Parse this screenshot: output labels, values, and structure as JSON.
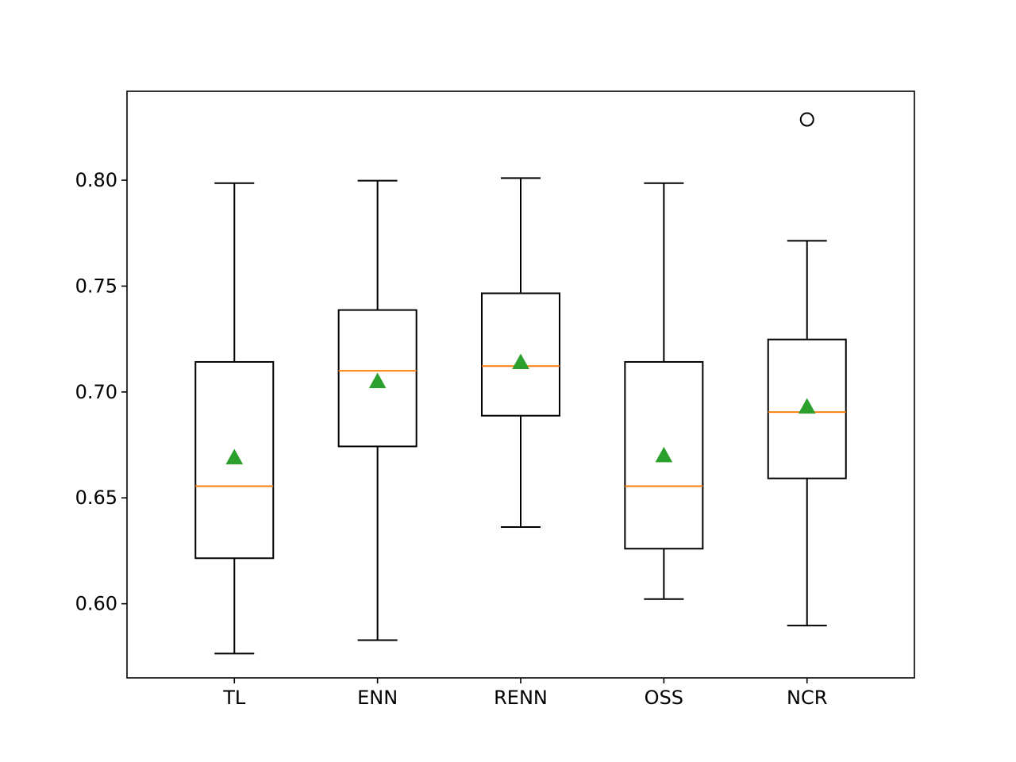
{
  "chart_data": {
    "type": "box",
    "title": "",
    "xlabel": "",
    "ylabel": "",
    "ylim": [
      0.565,
      0.842
    ],
    "yticks": [
      0.6,
      0.65,
      0.7,
      0.75,
      0.8
    ],
    "ytick_labels": [
      "0.60",
      "0.65",
      "0.70",
      "0.75",
      "0.80"
    ],
    "grid": false,
    "categories": [
      "TL",
      "ENN",
      "RENN",
      "OSS",
      "NCR"
    ],
    "boxes": [
      {
        "whisker_low": 0.5765,
        "q1": 0.6215,
        "median": 0.6555,
        "q3": 0.7142,
        "whisker_high": 0.7986,
        "mean": 0.669,
        "outliers": []
      },
      {
        "whisker_low": 0.5828,
        "q1": 0.6743,
        "median": 0.71,
        "q3": 0.7387,
        "whisker_high": 0.7998,
        "mean": 0.705,
        "outliers": []
      },
      {
        "whisker_low": 0.6362,
        "q1": 0.6888,
        "median": 0.7122,
        "q3": 0.7466,
        "whisker_high": 0.801,
        "mean": 0.714,
        "outliers": []
      },
      {
        "whisker_low": 0.6022,
        "q1": 0.626,
        "median": 0.6555,
        "q3": 0.7142,
        "whisker_high": 0.7986,
        "mean": 0.67,
        "outliers": []
      },
      {
        "whisker_low": 0.5897,
        "q1": 0.6592,
        "median": 0.6905,
        "q3": 0.7248,
        "whisker_high": 0.7714,
        "mean": 0.693,
        "outliers": [
          0.8287
        ]
      }
    ],
    "colors": {
      "box": "#000000",
      "median": "#ff7f0e",
      "mean": "#2ca02c",
      "outlier": "#000000"
    }
  }
}
